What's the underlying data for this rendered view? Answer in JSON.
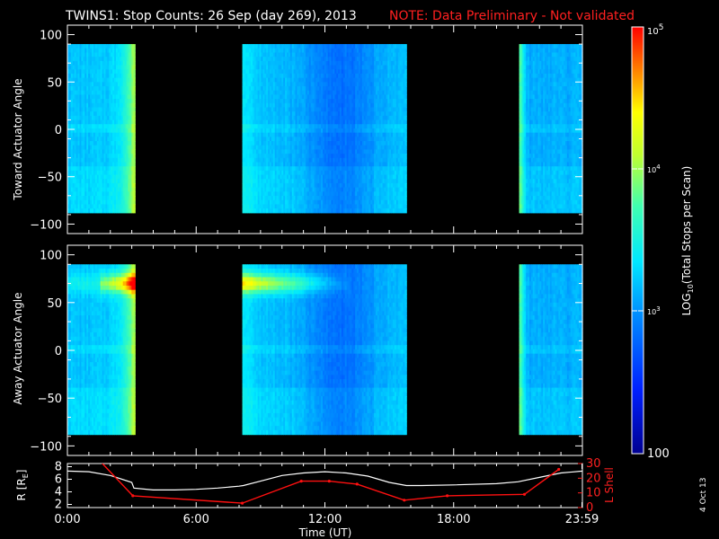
{
  "title": {
    "main": "TWINS1: Stop Counts: 26 Sep (day 269), 2013",
    "note": "NOTE: Data Preliminary - Not validated"
  },
  "colors": {
    "note": "#ff2020",
    "r_line": "#ffffff",
    "lshell_line": "#ff1010",
    "background": "#000000"
  },
  "side_date": "4 Oct 13",
  "chart_data": [
    {
      "type": "heatmap",
      "name": "toward",
      "ylabel": "Toward Actuator Angle",
      "ylim": [
        -110,
        110
      ],
      "yticks": [
        "100",
        "50",
        "0",
        "−50",
        "−100"
      ],
      "ytick_values": [
        100,
        50,
        0,
        -50,
        -100
      ],
      "xlim": [
        0,
        24
      ],
      "data_angle_range": [
        -88,
        90
      ],
      "data_segments": [
        [
          0,
          3.15
        ],
        [
          8.15,
          15.8
        ],
        [
          21.05,
          24
        ]
      ],
      "description_values": "log10 stop counts, mostly ~10^3 (cyan), with green/yellow rising toward segment edges",
      "center_log": 3.0
    },
    {
      "type": "heatmap",
      "name": "away",
      "ylabel": "Away Actuator Angle",
      "ylim": [
        -110,
        110
      ],
      "yticks": [
        "100",
        "50",
        "0",
        "−50",
        "−100"
      ],
      "ytick_values": [
        100,
        50,
        0,
        -50,
        -100
      ],
      "xlim": [
        0,
        24
      ],
      "data_angle_range": [
        -88,
        90
      ],
      "data_segments": [
        [
          0,
          3.15
        ],
        [
          8.15,
          15.8
        ],
        [
          21.05,
          24
        ]
      ],
      "hot_band_angle": 70,
      "center_log": 3.0
    },
    {
      "type": "line",
      "name": "orbit",
      "ylabel_left": "R [R",
      "ylabel_left_sub": "E",
      "ylabel_left_end": "]",
      "ylabel_right": "L Shell",
      "xlabel": "Time (UT)",
      "xticks": [
        "0:00",
        "6:00",
        "12:00",
        "18:00",
        "23:59"
      ],
      "xtick_values": [
        0,
        6,
        12,
        18,
        23.98
      ],
      "ylim_left": [
        1.5,
        8.5
      ],
      "yticks_left": [
        "8",
        "6",
        "4",
        "2"
      ],
      "ytick_values_left": [
        8,
        6,
        4,
        2
      ],
      "ylim_right": [
        0,
        30
      ],
      "yticks_right": [
        "30",
        "20",
        "10",
        "0"
      ],
      "ytick_values_right": [
        30,
        20,
        10,
        0
      ],
      "series": [
        {
          "x": [
            0,
            1,
            2,
            3,
            3.1,
            4,
            5,
            6,
            7,
            8,
            8.2,
            9,
            10,
            11,
            12,
            13,
            14,
            15,
            15.8,
            16.5,
            18,
            20,
            21,
            22,
            23,
            24
          ],
          "values": [
            7.3,
            7.2,
            6.6,
            5.5,
            4.6,
            4.3,
            4.3,
            4.4,
            4.6,
            4.9,
            5.0,
            5.7,
            6.6,
            7.0,
            7.2,
            7.0,
            6.5,
            5.5,
            5.0,
            5.0,
            5.1,
            5.3,
            5.6,
            6.3,
            7.0,
            7.3
          ]
        },
        {
          "x": [
            1.5,
            3.05,
            8.15,
            10.9,
            12.2,
            13.5,
            15.7,
            17.7,
            21.3,
            22.9
          ],
          "values": [
            32,
            8,
            3,
            18,
            18,
            16,
            5,
            8,
            9,
            26
          ]
        }
      ]
    }
  ],
  "colorbar": {
    "label_pre": "LOG",
    "label_sub": "10",
    "label_post": "(Total Stops per Scan)",
    "tick_top_base": "10",
    "tick_top_exp": "5",
    "tick_mid_base": "10",
    "tick_mid_exp": "4",
    "tick_low_base": "10",
    "tick_low_exp": "3",
    "tick_bottom": "100",
    "range_log": [
      2,
      5
    ]
  }
}
